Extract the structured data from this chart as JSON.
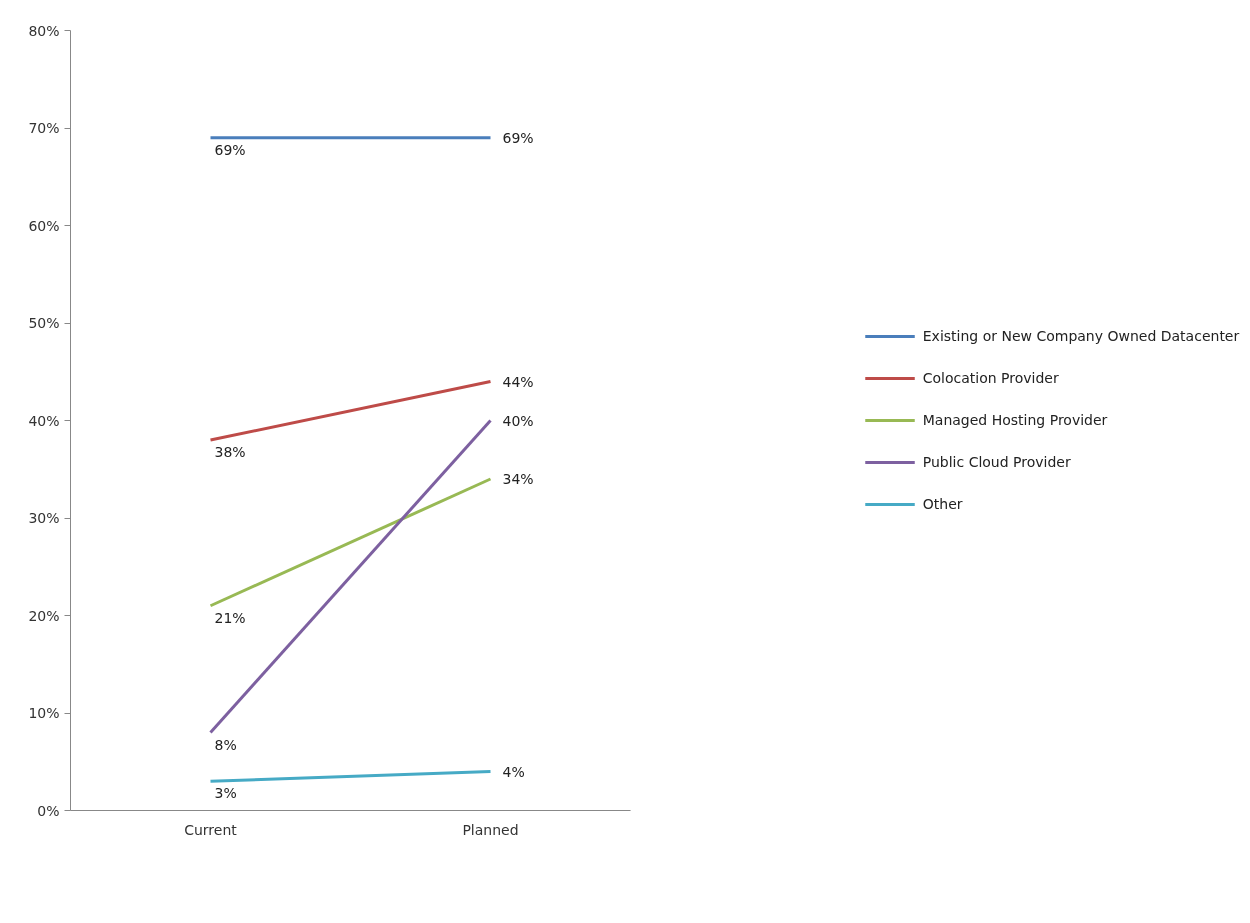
{
  "chart_data": {
    "type": "line",
    "categories": [
      "Current",
      "Planned"
    ],
    "ylim": [
      0,
      80
    ],
    "yticks": [
      {
        "value": 0,
        "label": "0%"
      },
      {
        "value": 10,
        "label": "10%"
      },
      {
        "value": 20,
        "label": "20%"
      },
      {
        "value": 30,
        "label": "30%"
      },
      {
        "value": 40,
        "label": "40%"
      },
      {
        "value": 50,
        "label": "50%"
      },
      {
        "value": 60,
        "label": "60%"
      },
      {
        "value": 70,
        "label": "70%"
      },
      {
        "value": 80,
        "label": "80%"
      }
    ],
    "legend": "right",
    "grid": false,
    "marker": "none",
    "line_style": "solid",
    "series": [
      {
        "name": "Existing or New Company Owned Datacenter",
        "color": "#4a7ebb",
        "values": [
          69,
          69
        ],
        "value_labels": [
          "69%",
          "69%"
        ]
      },
      {
        "name": "Colocation Provider",
        "color": "#be4b48",
        "values": [
          38,
          44
        ],
        "value_labels": [
          "38%",
          "44%"
        ]
      },
      {
        "name": "Managed Hosting Provider",
        "color": "#98b954",
        "values": [
          21,
          34
        ],
        "value_labels": [
          "21%",
          "34%"
        ]
      },
      {
        "name": "Public Cloud Provider",
        "color": "#7d60a0",
        "values": [
          8,
          40
        ],
        "value_labels": [
          "8%",
          "40%"
        ]
      },
      {
        "name": "Other",
        "color": "#46aac5",
        "values": [
          3,
          4
        ],
        "value_labels": [
          "3%",
          "4%"
        ]
      }
    ]
  }
}
